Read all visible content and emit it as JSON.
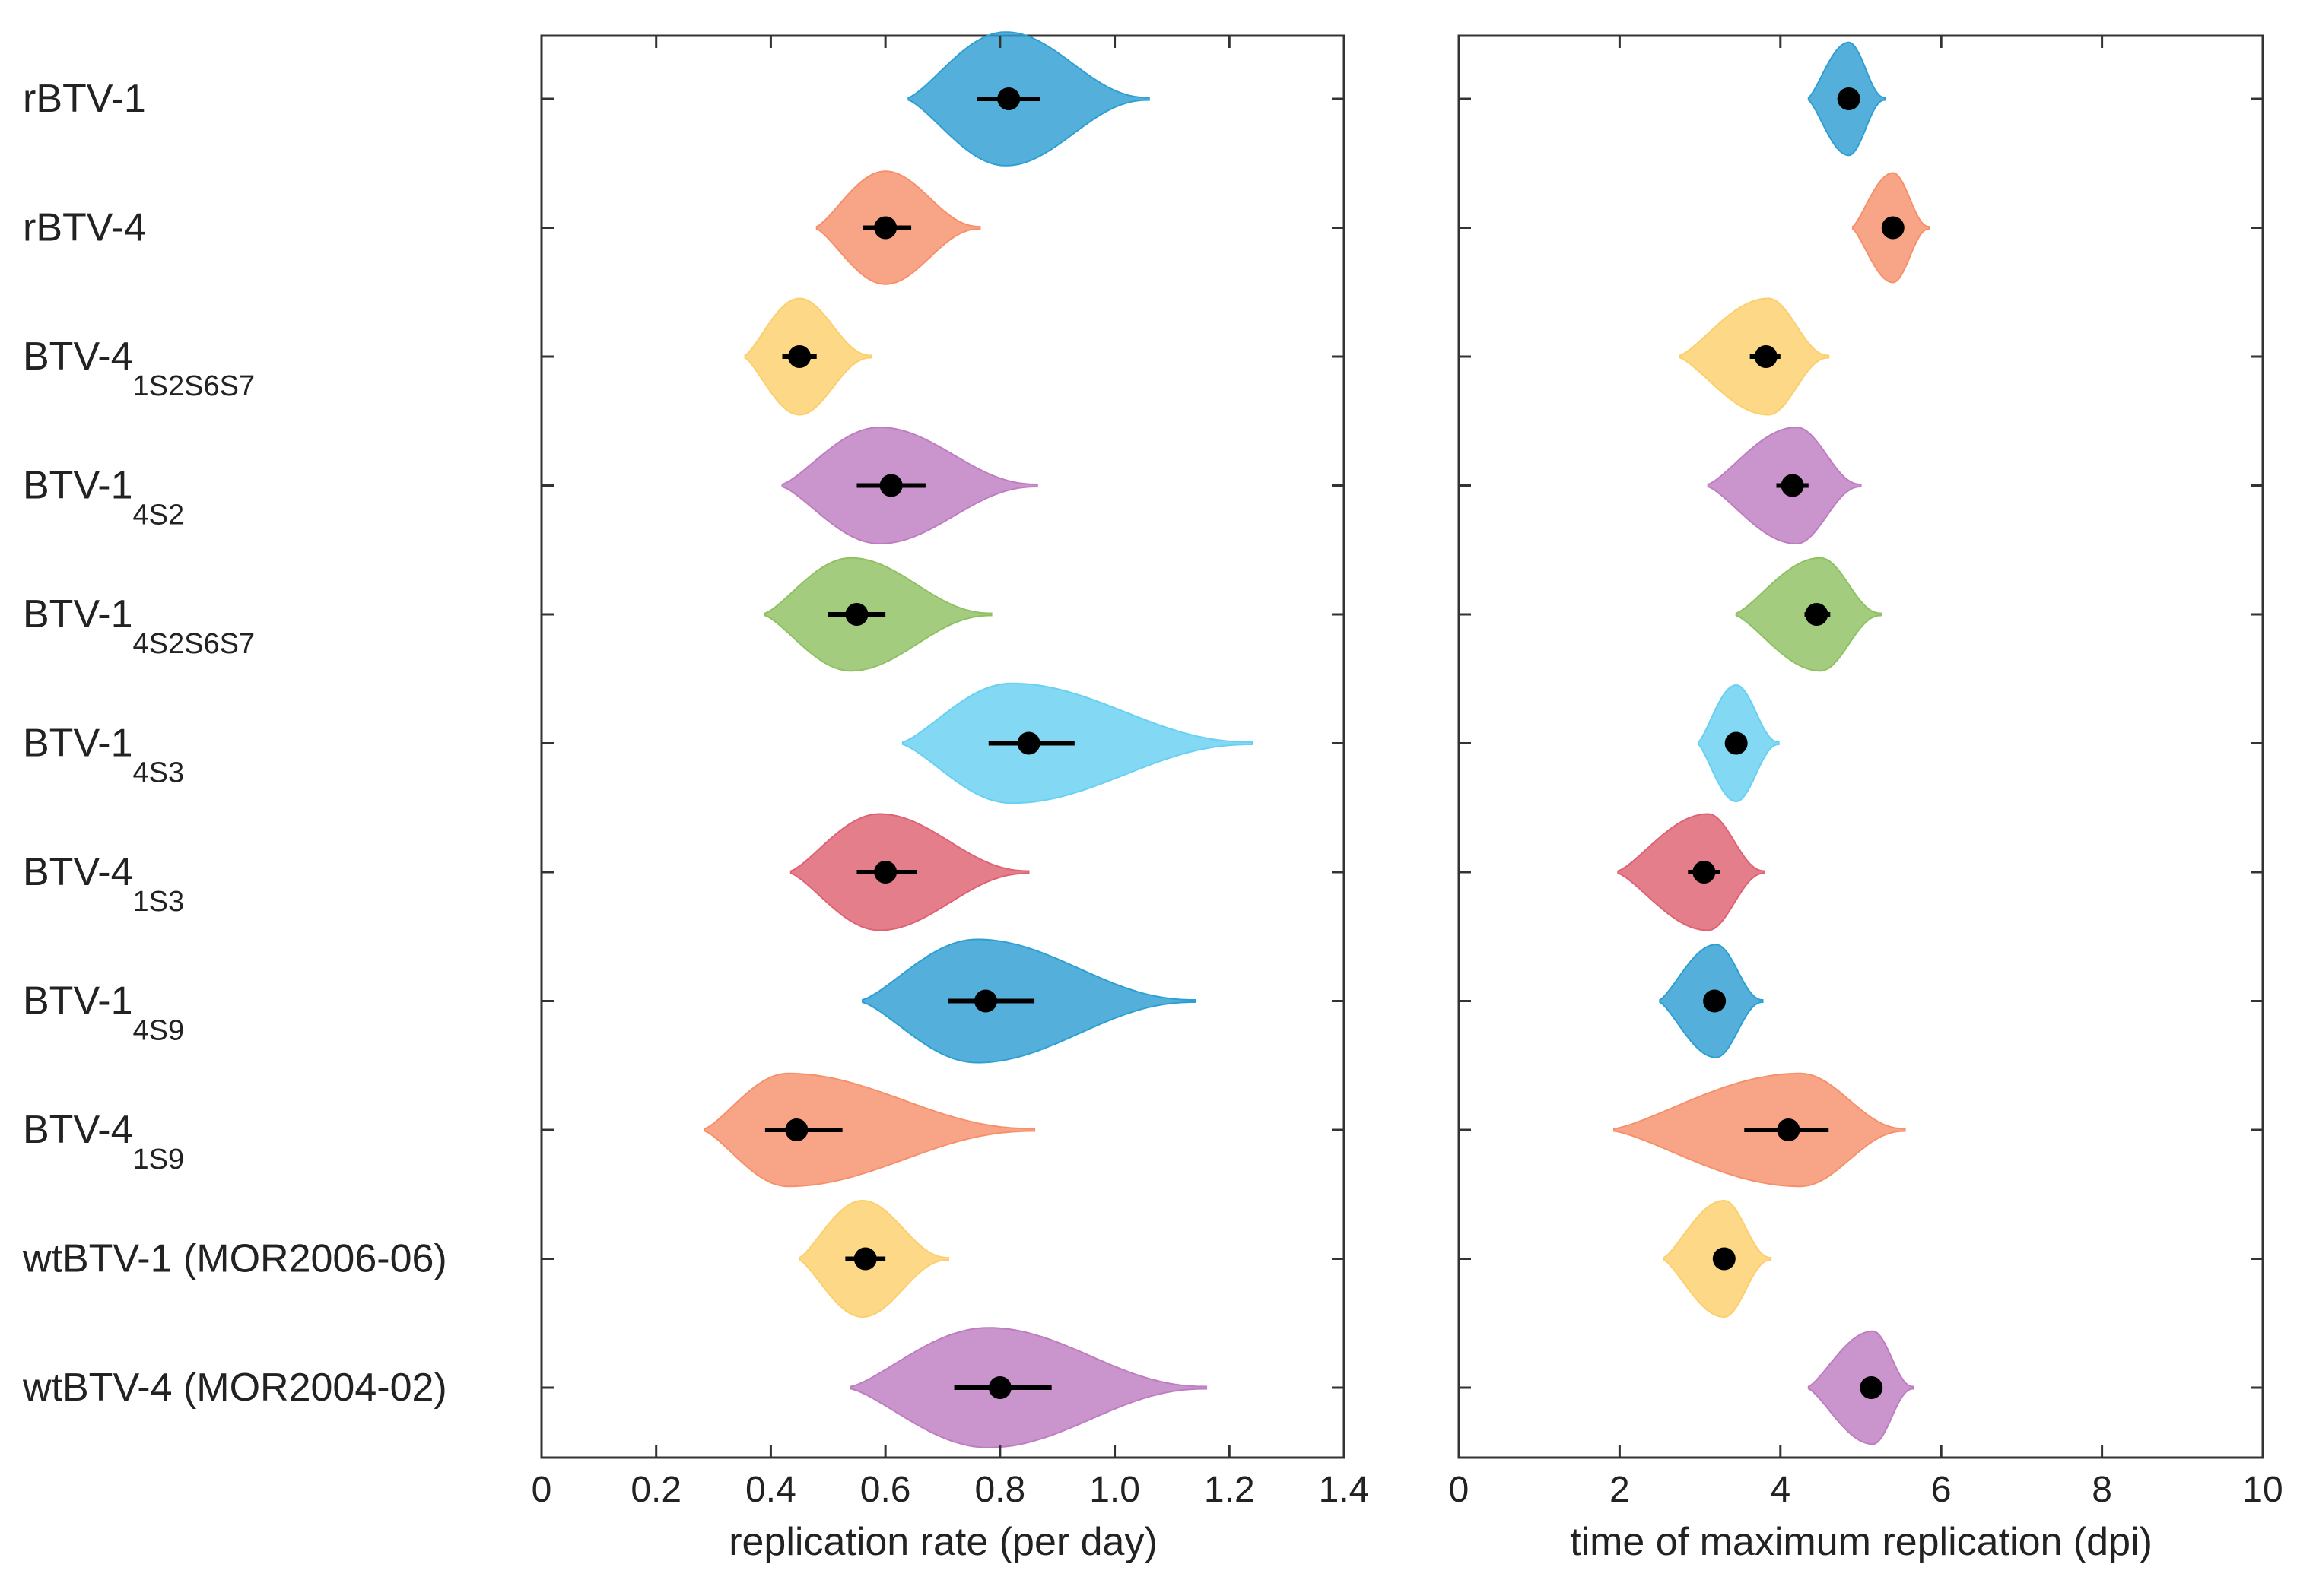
{
  "chart_data": {
    "type": "violin",
    "rows": [
      {
        "main": "rBTV-1",
        "sub": "",
        "color": "#2E9FD3"
      },
      {
        "main": "rBTV-4",
        "sub": "",
        "color": "#F6906B"
      },
      {
        "main": "BTV-4",
        "sub": "1S2S6S7",
        "color": "#FBCF6C"
      },
      {
        "main": "BTV-1",
        "sub": "4S2",
        "color": "#BE7DC1"
      },
      {
        "main": "BTV-1",
        "sub": "4S2S6S7",
        "color": "#8FC163"
      },
      {
        "main": "BTV-1",
        "sub": "4S3",
        "color": "#68D0F1"
      },
      {
        "main": "BTV-4",
        "sub": "1S3",
        "color": "#DE6272"
      },
      {
        "main": "BTV-1",
        "sub": "4S9",
        "color": "#2E9FD3"
      },
      {
        "main": "BTV-4",
        "sub": "1S9",
        "color": "#F6906B"
      },
      {
        "main": "wtBTV-1 (MOR2006-06)",
        "sub": "",
        "color": "#FBCF6C"
      },
      {
        "main": "wtBTV-4 (MOR2004-02)",
        "sub": "",
        "color": "#BE7DC1"
      }
    ],
    "panels": [
      {
        "xlabel": "replication rate (per day)",
        "xlim": [
          0,
          1.4
        ],
        "ticks": [
          0,
          0.2,
          0.4,
          0.6,
          0.8,
          1.0,
          1.2,
          1.4
        ],
        "tick_labels": [
          "0",
          "0.2",
          "0.4",
          "0.6",
          "0.8",
          "1.0",
          "1.2",
          "1.4"
        ],
        "series": [
          {
            "median": 0.815,
            "ci": [
              0.76,
              0.87
            ],
            "min": 0.64,
            "max": 1.06,
            "mode": 0.81,
            "width": 0.38
          },
          {
            "median": 0.6,
            "ci": [
              0.56,
              0.645
            ],
            "min": 0.48,
            "max": 0.765,
            "mode": 0.6,
            "width": 0.32
          },
          {
            "median": 0.45,
            "ci": [
              0.42,
              0.48
            ],
            "min": 0.355,
            "max": 0.575,
            "mode": 0.45,
            "width": 0.33
          },
          {
            "median": 0.61,
            "ci": [
              0.55,
              0.67
            ],
            "min": 0.42,
            "max": 0.865,
            "mode": 0.59,
            "width": 0.33
          },
          {
            "median": 0.55,
            "ci": [
              0.5,
              0.6
            ],
            "min": 0.39,
            "max": 0.785,
            "mode": 0.54,
            "width": 0.32
          },
          {
            "median": 0.85,
            "ci": [
              0.78,
              0.93
            ],
            "min": 0.63,
            "max": 1.24,
            "mode": 0.82,
            "width": 0.34
          },
          {
            "median": 0.6,
            "ci": [
              0.55,
              0.655
            ],
            "min": 0.435,
            "max": 0.85,
            "mode": 0.59,
            "width": 0.33
          },
          {
            "median": 0.775,
            "ci": [
              0.71,
              0.86
            ],
            "min": 0.56,
            "max": 1.14,
            "mode": 0.76,
            "width": 0.35
          },
          {
            "median": 0.445,
            "ci": [
              0.39,
              0.525
            ],
            "min": 0.285,
            "max": 0.86,
            "mode": 0.43,
            "width": 0.32
          },
          {
            "median": 0.565,
            "ci": [
              0.53,
              0.6
            ],
            "min": 0.45,
            "max": 0.71,
            "mode": 0.56,
            "width": 0.33
          },
          {
            "median": 0.8,
            "ci": [
              0.72,
              0.89
            ],
            "min": 0.54,
            "max": 1.16,
            "mode": 0.78,
            "width": 0.34
          }
        ]
      },
      {
        "xlabel": "time of maximum replication (dpi)",
        "xlim": [
          0,
          10
        ],
        "ticks": [
          0,
          2,
          4,
          6,
          8,
          10
        ],
        "tick_labels": [
          "0",
          "2",
          "4",
          "6",
          "8",
          "10"
        ],
        "series": [
          {
            "median": 4.85,
            "ci": [
              4.8,
              4.9
            ],
            "min": 4.35,
            "max": 5.3,
            "mode": 4.85,
            "width": 0.32
          },
          {
            "median": 5.4,
            "ci": [
              5.35,
              5.45
            ],
            "min": 4.9,
            "max": 5.85,
            "mode": 5.4,
            "width": 0.31
          },
          {
            "median": 3.82,
            "ci": [
              3.62,
              4.0
            ],
            "min": 2.75,
            "max": 4.6,
            "mode": 3.85,
            "width": 0.33
          },
          {
            "median": 4.15,
            "ci": [
              3.95,
              4.35
            ],
            "min": 3.1,
            "max": 5.0,
            "mode": 4.2,
            "width": 0.33
          },
          {
            "median": 4.45,
            "ci": [
              4.3,
              4.62
            ],
            "min": 3.45,
            "max": 5.25,
            "mode": 4.5,
            "width": 0.32
          },
          {
            "median": 3.45,
            "ci": [
              3.38,
              3.52
            ],
            "min": 2.98,
            "max": 3.98,
            "mode": 3.45,
            "width": 0.33
          },
          {
            "median": 3.05,
            "ci": [
              2.85,
              3.25
            ],
            "min": 1.98,
            "max": 3.8,
            "mode": 3.1,
            "width": 0.33
          },
          {
            "median": 3.18,
            "ci": [
              3.05,
              3.3
            ],
            "min": 2.5,
            "max": 3.78,
            "mode": 3.2,
            "width": 0.32
          },
          {
            "median": 4.1,
            "ci": [
              3.55,
              4.6
            ],
            "min": 1.93,
            "max": 5.55,
            "mode": 4.25,
            "width": 0.32
          },
          {
            "median": 3.3,
            "ci": [
              3.22,
              3.4
            ],
            "min": 2.55,
            "max": 3.88,
            "mode": 3.3,
            "width": 0.33
          },
          {
            "median": 5.13,
            "ci": [
              5.05,
              5.2
            ],
            "min": 4.35,
            "max": 5.65,
            "mode": 5.15,
            "width": 0.32
          }
        ]
      }
    ]
  }
}
